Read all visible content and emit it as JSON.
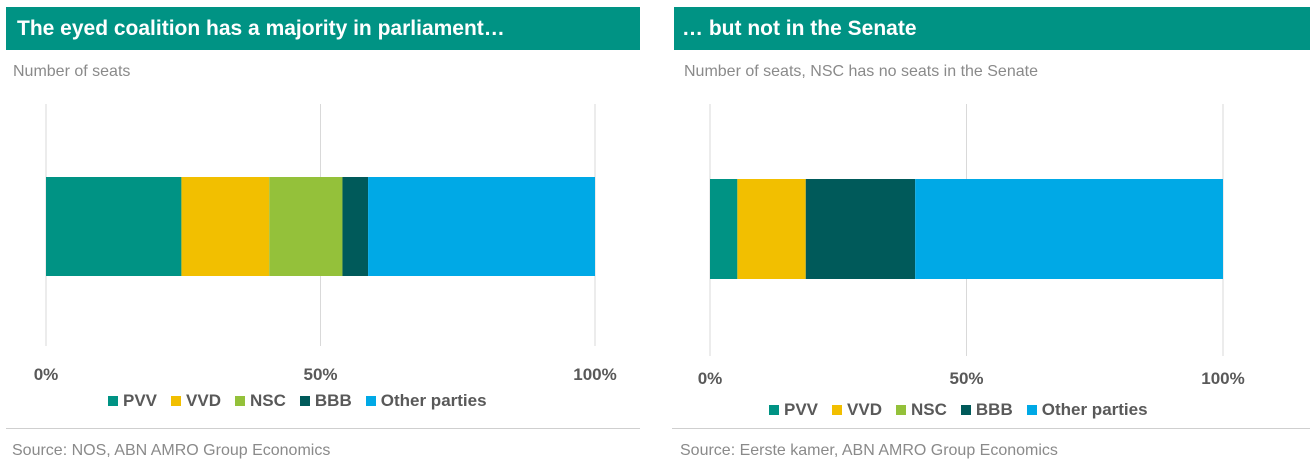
{
  "colors": {
    "PVV": "#009384",
    "VVD": "#f2bf00",
    "NSC": "#94c13a",
    "BBB": "#005a5a",
    "Other parties": "#00a9e6"
  },
  "panels": [
    {
      "title": "The eyed coalition has a majority in parliament…",
      "subtitle": "Number of seats",
      "source": "Source: NOS, ABN AMRO Group Economics",
      "chart_data": {
        "type": "bar",
        "orientation": "horizontal",
        "stacked": "percent",
        "categories": [
          ""
        ],
        "series": [
          {
            "name": "PVV",
            "values": [
              37
            ]
          },
          {
            "name": "VVD",
            "values": [
              24
            ]
          },
          {
            "name": "NSC",
            "values": [
              20
            ]
          },
          {
            "name": "BBB",
            "values": [
              7
            ]
          },
          {
            "name": "Other parties",
            "values": [
              62
            ]
          }
        ],
        "xlim": [
          0,
          100
        ],
        "x_ticks": [
          "0%",
          "50%",
          "100%"
        ],
        "grid": "vertical",
        "legend": "bottom"
      }
    },
    {
      "title": "… but not in the Senate",
      "subtitle": "Number of seats, NSC has no seats in the Senate",
      "source": "Source: Eerste kamer, ABN AMRO Group Economics",
      "chart_data": {
        "type": "bar",
        "orientation": "horizontal",
        "stacked": "percent",
        "categories": [
          ""
        ],
        "series": [
          {
            "name": "PVV",
            "values": [
              4
            ]
          },
          {
            "name": "VVD",
            "values": [
              10
            ]
          },
          {
            "name": "NSC",
            "values": [
              0
            ]
          },
          {
            "name": "BBB",
            "values": [
              16
            ]
          },
          {
            "name": "Other parties",
            "values": [
              45
            ]
          }
        ],
        "xlim": [
          0,
          100
        ],
        "x_ticks": [
          "0%",
          "50%",
          "100%"
        ],
        "grid": "vertical",
        "legend": "bottom"
      }
    }
  ]
}
